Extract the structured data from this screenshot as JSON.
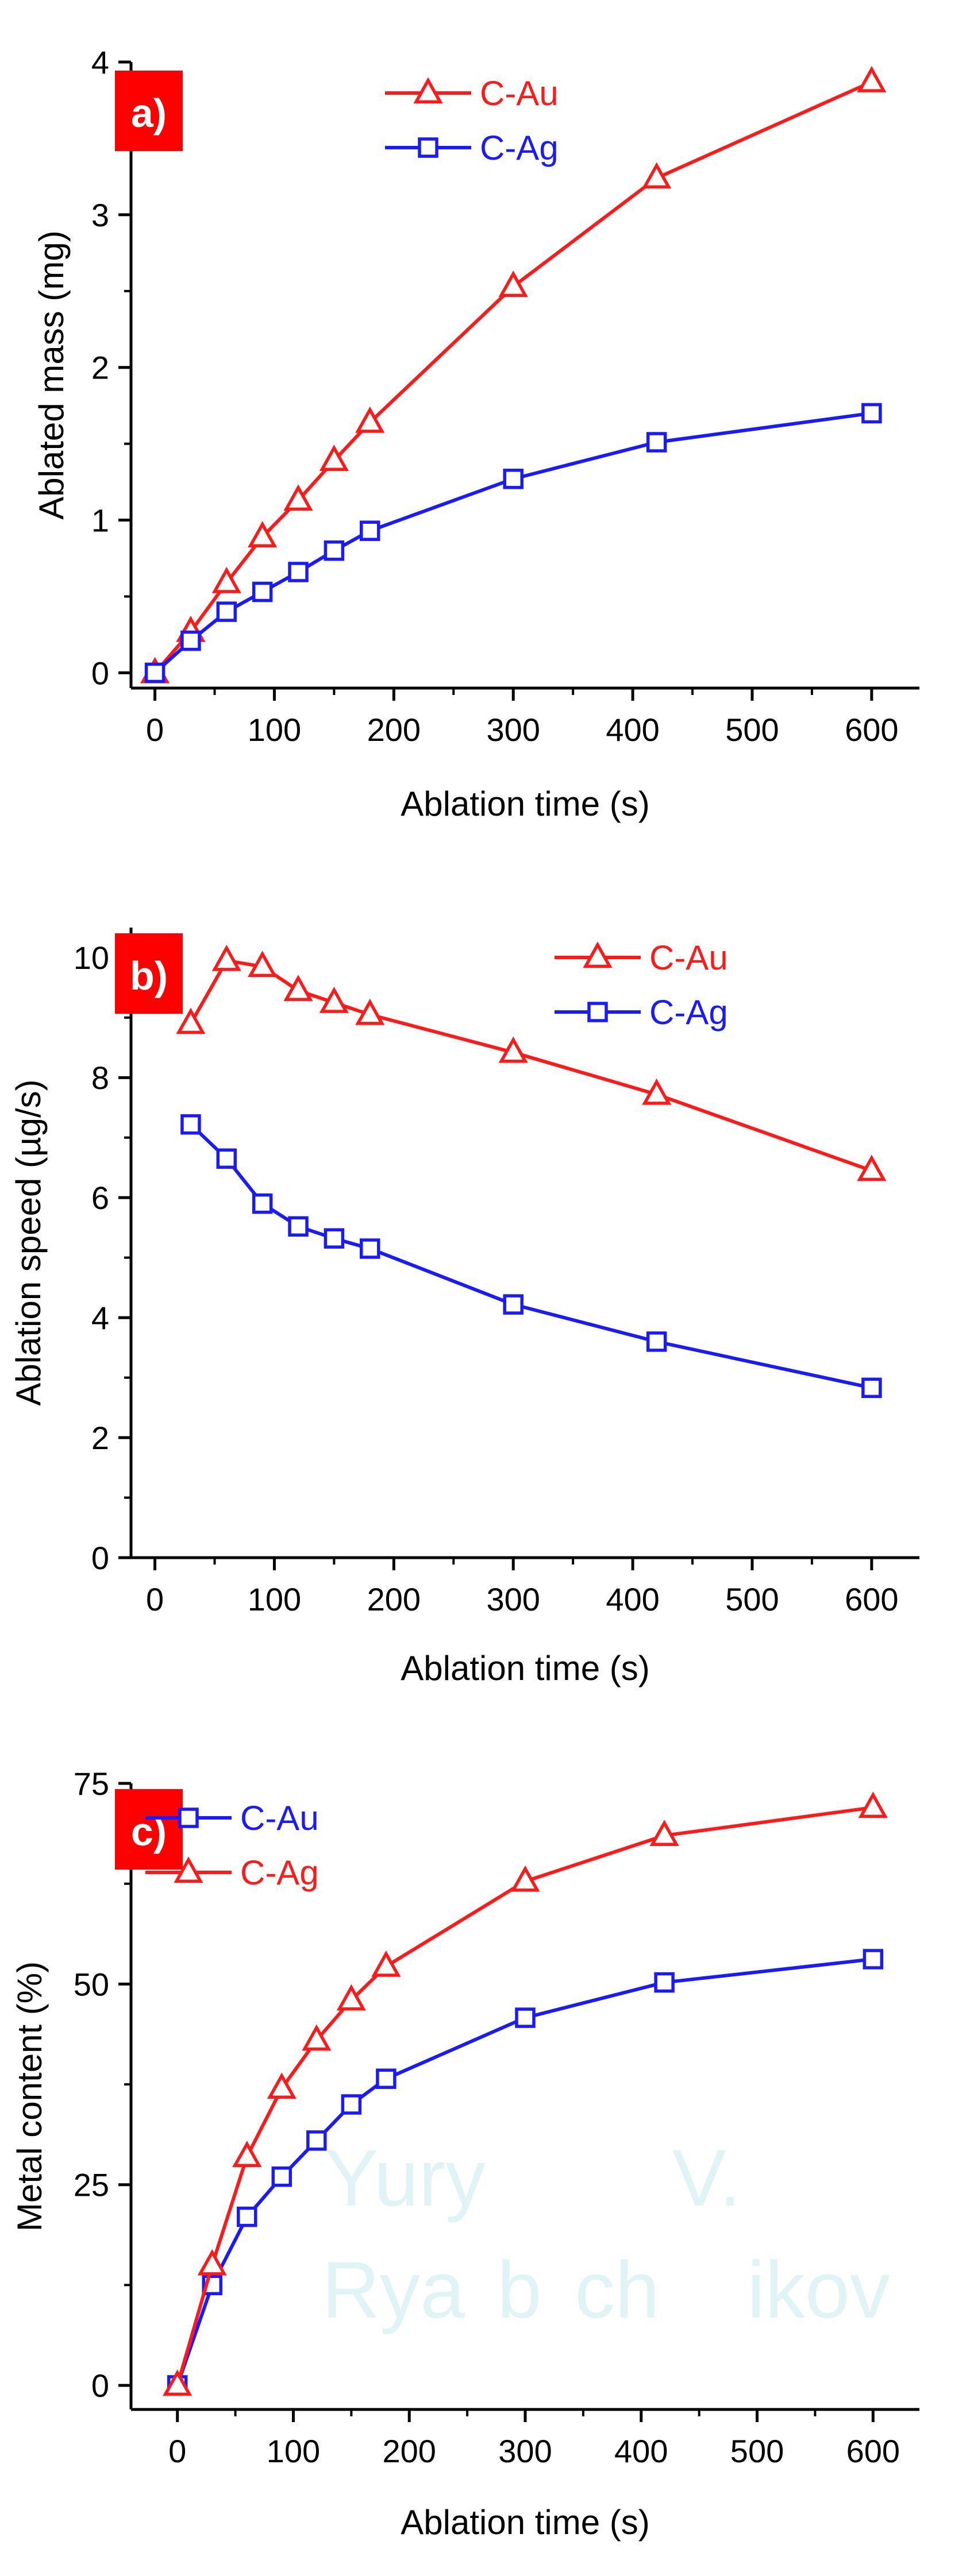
{
  "colors": {
    "red": "#ff1a1a",
    "blue": "#1a1aff",
    "axis": "#000000",
    "panel_tag_bg": "#ff0000",
    "panel_tag_text": "#ffffff",
    "watermark": "#e0f4f6"
  },
  "watermark": {
    "line1_left": "Yury",
    "line1_right": "V.",
    "line2_a": "Rya",
    "line2_b": "b",
    "line2_c": "ch",
    "line2_d": "ikov"
  },
  "chart_data": [
    {
      "panel_label": "a)",
      "type": "line",
      "xlabel": "Ablation time (s)",
      "ylabel": "Ablated mass (mg)",
      "xlim": [
        -20,
        640
      ],
      "ylim": [
        -0.1,
        4.0
      ],
      "xticks": [
        0,
        100,
        200,
        300,
        400,
        500,
        600
      ],
      "yticks": [
        0,
        1,
        2,
        3,
        4
      ],
      "tick_labels_x": [
        "0",
        "100",
        "200",
        "300",
        "400",
        "500",
        "600"
      ],
      "tick_labels_y": [
        "0",
        "1",
        "2",
        "3",
        "4"
      ],
      "legend_position": "top-right",
      "series": [
        {
          "name": "C-Au",
          "color": "#ff1a1a",
          "marker": "triangle",
          "x": [
            0,
            30,
            60,
            90,
            120,
            150,
            180,
            300,
            420,
            600
          ],
          "y": [
            0,
            0.27,
            0.59,
            0.89,
            1.13,
            1.39,
            1.64,
            2.53,
            3.24,
            3.87
          ]
        },
        {
          "name": "C-Ag",
          "color": "#1a1aff",
          "marker": "square",
          "x": [
            0,
            30,
            60,
            90,
            120,
            150,
            180,
            300,
            420,
            600
          ],
          "y": [
            0,
            0.21,
            0.4,
            0.53,
            0.66,
            0.8,
            0.93,
            1.27,
            1.51,
            1.7
          ]
        }
      ]
    },
    {
      "panel_label": "b)",
      "type": "line",
      "xlabel": "Ablation time (s)",
      "ylabel": "Ablation speed (µg/s)",
      "xlim": [
        -20,
        640
      ],
      "ylim": [
        0,
        10.5
      ],
      "xticks": [
        0,
        100,
        200,
        300,
        400,
        500,
        600
      ],
      "yticks": [
        0,
        2,
        4,
        6,
        8,
        10
      ],
      "tick_labels_x": [
        "0",
        "100",
        "200",
        "300",
        "400",
        "500",
        "600"
      ],
      "tick_labels_y": [
        "0",
        "2",
        "4",
        "6",
        "8",
        "10"
      ],
      "legend_position": "top-right",
      "series": [
        {
          "name": "C-Au",
          "color": "#ff1a1a",
          "marker": "triangle",
          "x": [
            30,
            60,
            90,
            120,
            150,
            180,
            300,
            420,
            600
          ],
          "y": [
            8.9,
            9.95,
            9.85,
            9.45,
            9.25,
            9.05,
            8.42,
            7.72,
            6.45
          ]
        },
        {
          "name": "C-Ag",
          "color": "#1a1aff",
          "marker": "square",
          "x": [
            30,
            60,
            90,
            120,
            150,
            180,
            300,
            420,
            600
          ],
          "y": [
            7.22,
            6.65,
            5.9,
            5.52,
            5.32,
            5.15,
            4.22,
            3.6,
            2.83
          ]
        }
      ]
    },
    {
      "panel_label": "c)",
      "type": "line",
      "xlabel": "Ablation time (s)",
      "ylabel": "Metal content (%)",
      "xlim": [
        -40,
        640
      ],
      "ylim": [
        -3,
        75
      ],
      "xticks": [
        0,
        100,
        200,
        300,
        400,
        500,
        600
      ],
      "yticks": [
        0,
        25,
        50,
        75
      ],
      "tick_labels_x": [
        "0",
        "100",
        "200",
        "300",
        "400",
        "500",
        "600"
      ],
      "tick_labels_y": [
        "0",
        "25",
        "50",
        "75"
      ],
      "legend_position": "top-left",
      "series": [
        {
          "name": "C-Au",
          "color": "#1a1aff",
          "marker": "square",
          "x": [
            0,
            30,
            60,
            90,
            120,
            150,
            180,
            300,
            420,
            600
          ],
          "y": [
            0,
            12.5,
            21,
            26,
            30.5,
            35,
            38.2,
            45.8,
            50.2,
            53.1
          ]
        },
        {
          "name": "C-Ag",
          "color": "#ff1a1a",
          "marker": "triangle",
          "x": [
            0,
            30,
            60,
            90,
            120,
            150,
            180,
            300,
            420,
            600
          ],
          "y": [
            0,
            15,
            28.5,
            37,
            43,
            48,
            52.2,
            62.8,
            68.5,
            72
          ]
        }
      ]
    }
  ]
}
